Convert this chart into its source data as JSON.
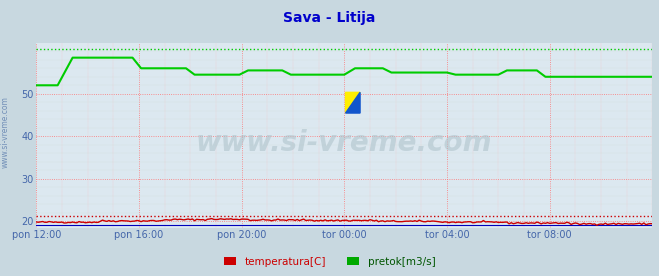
{
  "title": "Sava - Litija",
  "title_color": "#0000cc",
  "bg_color": "#c8d8e0",
  "plot_bg_color": "#dce8f0",
  "ylabel_rotated": "www.si-vreme.com",
  "watermark": "www.si-vreme.com",
  "xlim": [
    0,
    288
  ],
  "ylim": [
    18.5,
    62
  ],
  "yticks": [
    20,
    30,
    40,
    50
  ],
  "xtick_labels": [
    "pon 12:00",
    "pon 16:00",
    "pon 20:00",
    "tor 00:00",
    "tor 04:00",
    "tor 08:00"
  ],
  "xtick_positions": [
    0,
    48,
    96,
    144,
    192,
    240
  ],
  "legend_labels": [
    "temperatura[C]",
    "pretok[m3/s]"
  ],
  "legend_colors": [
    "#cc0000",
    "#00aa00"
  ],
  "green_line_color": "#00cc00",
  "red_line_color": "#cc0000",
  "blue_line_color": "#0000bb",
  "green_dot_y": 60.5,
  "red_dot_y": 21.2
}
